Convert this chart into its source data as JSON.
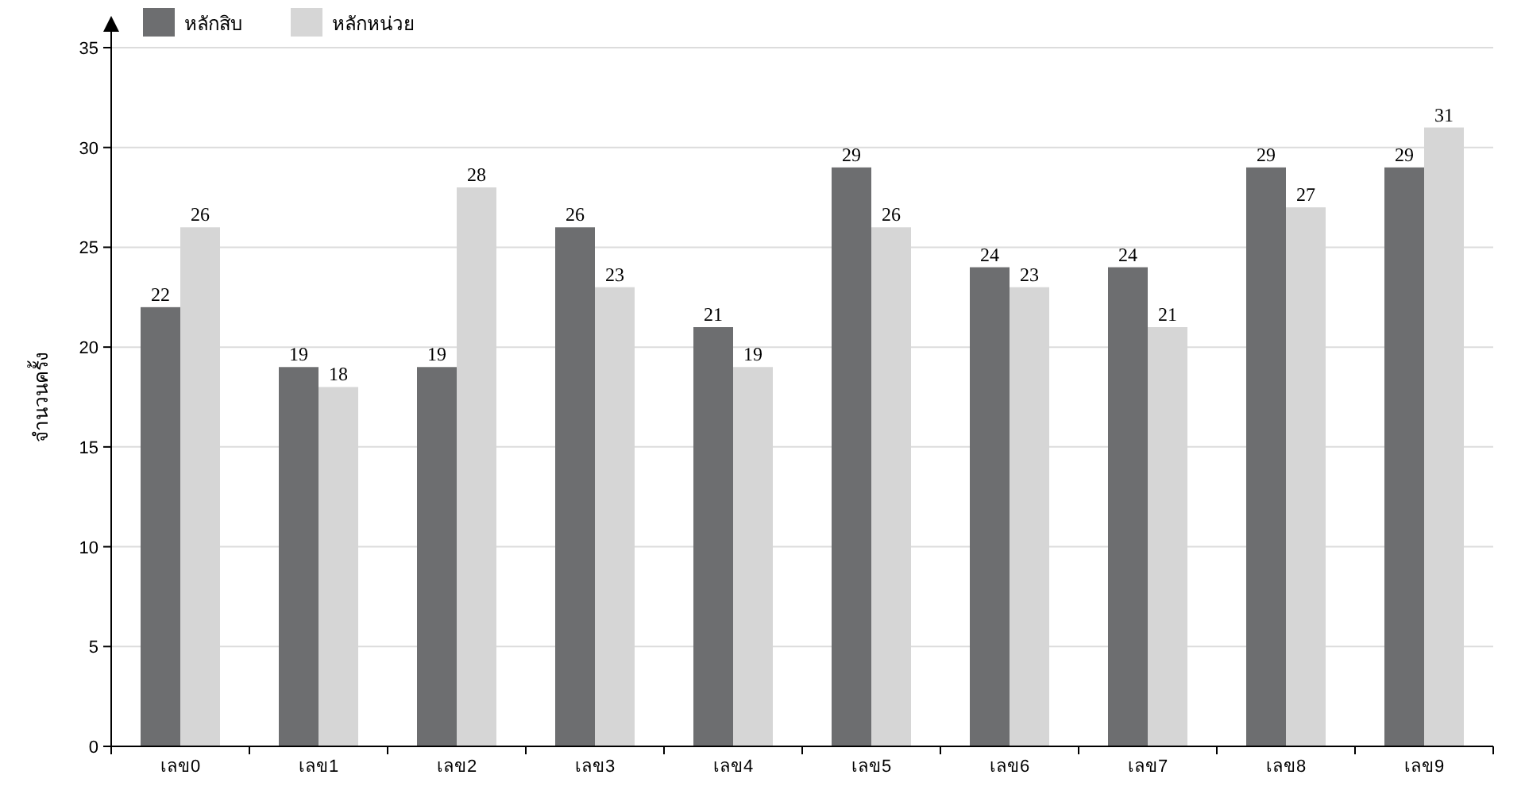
{
  "chart_data": {
    "type": "bar",
    "ylabel": "จำนวนครั้ง",
    "categories": [
      "เลข0",
      "เลข1",
      "เลข2",
      "เลข3",
      "เลข4",
      "เลข5",
      "เลข6",
      "เลข7",
      "เลข8",
      "เลข9"
    ],
    "series": [
      {
        "name": "หลักสิบ",
        "color": "#6d6e70",
        "values": [
          22,
          19,
          19,
          26,
          21,
          29,
          24,
          24,
          29,
          29
        ]
      },
      {
        "name": "หลักหน่วย",
        "color": "#d6d6d6",
        "values": [
          26,
          18,
          28,
          23,
          19,
          26,
          23,
          21,
          27,
          31
        ]
      }
    ],
    "ylim": [
      0,
      35
    ],
    "yticks": [
      0,
      5,
      10,
      15,
      20,
      25,
      30,
      35
    ],
    "grid": "y",
    "legend": "top left",
    "data_labels": true
  }
}
